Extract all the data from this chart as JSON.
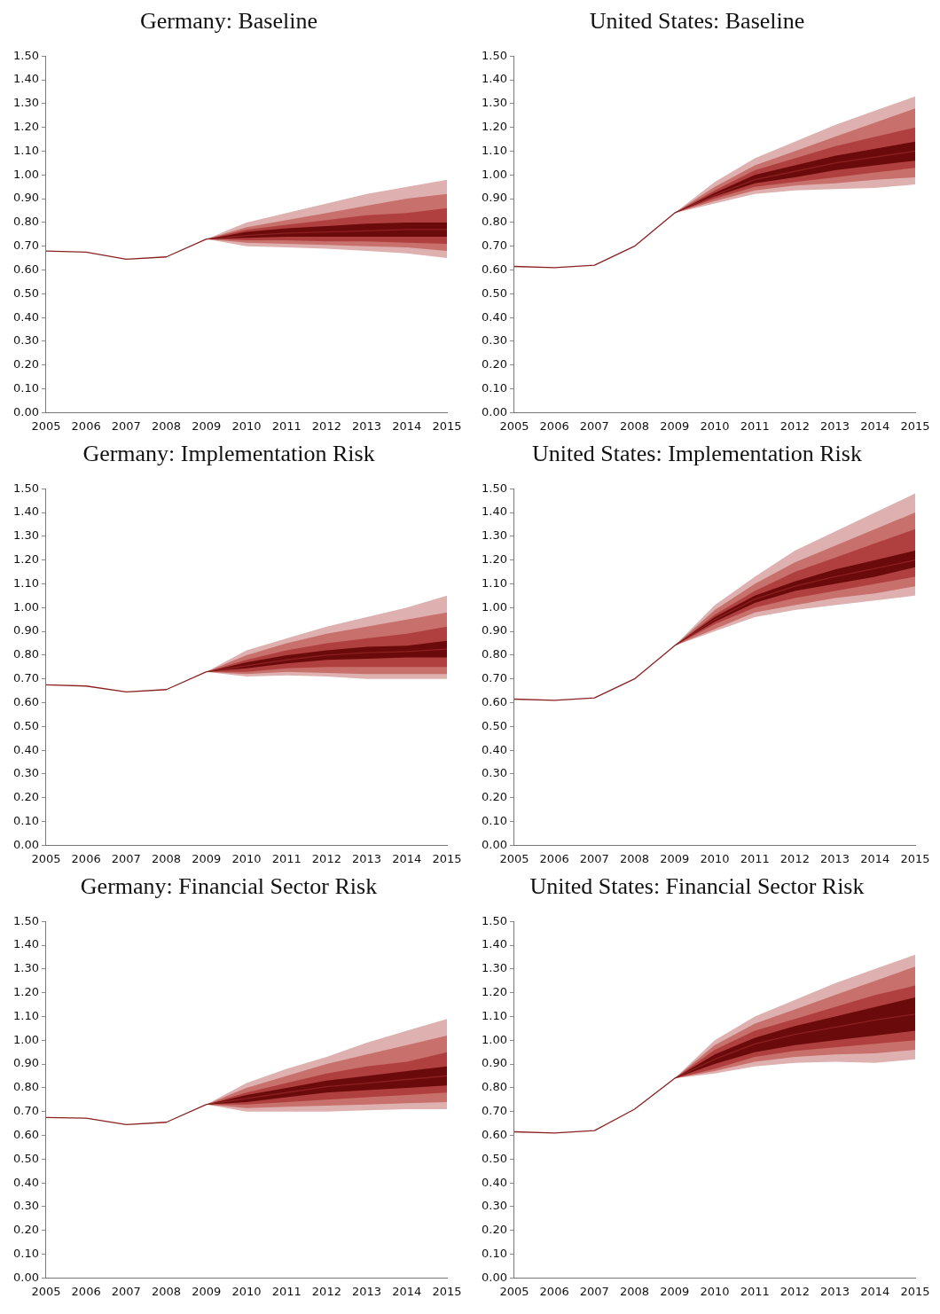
{
  "chart_data": [
    {
      "type": "line",
      "title": "Germany: Baseline",
      "categories": [
        "2005",
        "2006",
        "2007",
        "2008",
        "2009",
        "2010",
        "2011",
        "2012",
        "2013",
        "2014",
        "2015"
      ],
      "ylim": [
        0,
        1.5
      ],
      "yticks": [
        {
          "value": 0,
          "label": "0.00"
        },
        {
          "value": 0.1,
          "label": "0.10"
        },
        {
          "value": 0.2,
          "label": "0.20"
        },
        {
          "value": 0.3,
          "label": "0.30"
        },
        {
          "value": 0.4,
          "label": "0.40"
        },
        {
          "value": 0.5,
          "label": "0.50"
        },
        {
          "value": 0.6,
          "label": "0.60"
        },
        {
          "value": 0.7,
          "label": "0.70"
        },
        {
          "value": 0.8,
          "label": "0.80"
        },
        {
          "value": 0.9,
          "label": "0.90"
        },
        {
          "value": 1,
          "label": "1.00"
        },
        {
          "value": 1.1,
          "label": "1.10"
        },
        {
          "value": 1.2,
          "label": "1.20"
        },
        {
          "value": 1.3,
          "label": "1.30"
        },
        {
          "value": 1.4,
          "label": "1.40"
        },
        {
          "value": 1.5,
          "label": "1.50"
        }
      ],
      "grid": false,
      "legend": false,
      "series": [
        {
          "type": "area",
          "color": "#dfb0b0",
          "values": [
            null,
            null,
            null,
            null,
            null,
            null,
            null,
            null,
            null,
            null,
            null
          ],
          "lower": [
            null,
            null,
            null,
            null,
            0.73,
            0.7,
            0.695,
            0.69,
            0.68,
            0.67,
            0.65
          ],
          "upper": [
            null,
            null,
            null,
            null,
            0.73,
            0.8,
            0.84,
            0.88,
            0.92,
            0.95,
            0.98
          ]
        },
        {
          "type": "area",
          "color": "#c8706b",
          "values": [
            null,
            null,
            null,
            null,
            null,
            null,
            null,
            null,
            null,
            null,
            null
          ],
          "lower": [
            null,
            null,
            null,
            null,
            0.73,
            0.715,
            0.71,
            0.705,
            0.7,
            0.695,
            0.68
          ],
          "upper": [
            null,
            null,
            null,
            null,
            0.73,
            0.78,
            0.81,
            0.84,
            0.87,
            0.9,
            0.92
          ]
        },
        {
          "type": "area",
          "color": "#b04040",
          "values": [
            null,
            null,
            null,
            null,
            null,
            null,
            null,
            null,
            null,
            null,
            null
          ],
          "lower": [
            null,
            null,
            null,
            null,
            0.73,
            0.725,
            0.725,
            0.72,
            0.72,
            0.715,
            0.71
          ],
          "upper": [
            null,
            null,
            null,
            null,
            0.73,
            0.77,
            0.79,
            0.81,
            0.83,
            0.84,
            0.86
          ]
        },
        {
          "type": "area",
          "color": "#6b0a0a",
          "values": [
            null,
            null,
            null,
            null,
            null,
            null,
            null,
            null,
            null,
            null,
            null
          ],
          "lower": [
            null,
            null,
            null,
            null,
            0.73,
            0.735,
            0.74,
            0.74,
            0.74,
            0.74,
            0.74
          ],
          "upper": [
            null,
            null,
            null,
            null,
            0.73,
            0.76,
            0.775,
            0.785,
            0.795,
            0.8,
            0.8
          ]
        },
        {
          "type": "line",
          "color": "#8b2020",
          "values": [
            0.68,
            0.675,
            0.645,
            0.655,
            0.73,
            0.745,
            0.755,
            0.76,
            0.765,
            0.77,
            0.77
          ]
        }
      ]
    },
    {
      "type": "line",
      "title": "United States: Baseline",
      "categories": [
        "2005",
        "2006",
        "2007",
        "2008",
        "2009",
        "2010",
        "2011",
        "2012",
        "2013",
        "2014",
        "2015"
      ],
      "ylim": [
        0,
        1.5
      ],
      "yticks": [
        {
          "value": 0,
          "label": "0.00"
        },
        {
          "value": 0.1,
          "label": "0.10"
        },
        {
          "value": 0.2,
          "label": "0.20"
        },
        {
          "value": 0.3,
          "label": "0.30"
        },
        {
          "value": 0.4,
          "label": "0.40"
        },
        {
          "value": 0.5,
          "label": "0.50"
        },
        {
          "value": 0.6,
          "label": "0.60"
        },
        {
          "value": 0.7,
          "label": "0.70"
        },
        {
          "value": 0.8,
          "label": "0.80"
        },
        {
          "value": 0.9,
          "label": "0.90"
        },
        {
          "value": 1,
          "label": "1.00"
        },
        {
          "value": 1.1,
          "label": "1.10"
        },
        {
          "value": 1.2,
          "label": "1.20"
        },
        {
          "value": 1.3,
          "label": "1.30"
        },
        {
          "value": 1.4,
          "label": "1.40"
        },
        {
          "value": 1.5,
          "label": "1.50"
        }
      ],
      "grid": false,
      "legend": false,
      "series": [
        {
          "type": "area",
          "color": "#dfb0b0",
          "values": [
            null,
            null,
            null,
            null,
            null,
            null,
            null,
            null,
            null,
            null,
            null
          ],
          "lower": [
            null,
            null,
            null,
            null,
            0.84,
            0.88,
            0.92,
            0.935,
            0.94,
            0.945,
            0.96
          ],
          "upper": [
            null,
            null,
            null,
            null,
            0.84,
            0.97,
            1.07,
            1.14,
            1.21,
            1.27,
            1.33
          ]
        },
        {
          "type": "area",
          "color": "#c8706b",
          "values": [
            null,
            null,
            null,
            null,
            null,
            null,
            null,
            null,
            null,
            null,
            null
          ],
          "lower": [
            null,
            null,
            null,
            null,
            0.84,
            0.89,
            0.935,
            0.955,
            0.965,
            0.98,
            0.99
          ],
          "upper": [
            null,
            null,
            null,
            null,
            0.84,
            0.95,
            1.04,
            1.1,
            1.16,
            1.22,
            1.28
          ]
        },
        {
          "type": "area",
          "color": "#b04040",
          "values": [
            null,
            null,
            null,
            null,
            null,
            null,
            null,
            null,
            null,
            null,
            null
          ],
          "lower": [
            null,
            null,
            null,
            null,
            0.84,
            0.9,
            0.95,
            0.97,
            0.99,
            1.01,
            1.03
          ],
          "upper": [
            null,
            null,
            null,
            null,
            0.84,
            0.935,
            1.02,
            1.07,
            1.12,
            1.16,
            1.2
          ]
        },
        {
          "type": "area",
          "color": "#6b0a0a",
          "values": [
            null,
            null,
            null,
            null,
            null,
            null,
            null,
            null,
            null,
            null,
            null
          ],
          "lower": [
            null,
            null,
            null,
            null,
            0.84,
            0.91,
            0.965,
            0.99,
            1.02,
            1.04,
            1.06
          ],
          "upper": [
            null,
            null,
            null,
            null,
            0.84,
            0.925,
            1.0,
            1.04,
            1.08,
            1.11,
            1.14
          ]
        },
        {
          "type": "line",
          "color": "#8b2020",
          "values": [
            0.615,
            0.61,
            0.62,
            0.7,
            0.84,
            0.915,
            0.98,
            1.015,
            1.05,
            1.075,
            1.1
          ]
        }
      ]
    },
    {
      "type": "line",
      "title": "Germany: Implementation Risk",
      "categories": [
        "2005",
        "2006",
        "2007",
        "2008",
        "2009",
        "2010",
        "2011",
        "2012",
        "2013",
        "2014",
        "2015"
      ],
      "ylim": [
        0,
        1.5
      ],
      "yticks": [
        {
          "value": 0,
          "label": "0.00"
        },
        {
          "value": 0.1,
          "label": "0.10"
        },
        {
          "value": 0.2,
          "label": "0.20"
        },
        {
          "value": 0.3,
          "label": "0.30"
        },
        {
          "value": 0.4,
          "label": "0.40"
        },
        {
          "value": 0.5,
          "label": "0.50"
        },
        {
          "value": 0.6,
          "label": "0.60"
        },
        {
          "value": 0.7,
          "label": "0.70"
        },
        {
          "value": 0.8,
          "label": "0.80"
        },
        {
          "value": 0.9,
          "label": "0.90"
        },
        {
          "value": 1,
          "label": "1.00"
        },
        {
          "value": 1.1,
          "label": "1.10"
        },
        {
          "value": 1.2,
          "label": "1.20"
        },
        {
          "value": 1.3,
          "label": "1.30"
        },
        {
          "value": 1.4,
          "label": "1.40"
        },
        {
          "value": 1.5,
          "label": "1.50"
        }
      ],
      "grid": false,
      "legend": false,
      "series": [
        {
          "type": "area",
          "color": "#dfb0b0",
          "values": [
            null,
            null,
            null,
            null,
            null,
            null,
            null,
            null,
            null,
            null,
            null
          ],
          "lower": [
            null,
            null,
            null,
            null,
            0.73,
            0.71,
            0.715,
            0.71,
            0.7,
            0.7,
            0.7
          ],
          "upper": [
            null,
            null,
            null,
            null,
            0.73,
            0.82,
            0.87,
            0.92,
            0.96,
            1.0,
            1.05
          ]
        },
        {
          "type": "area",
          "color": "#c8706b",
          "values": [
            null,
            null,
            null,
            null,
            null,
            null,
            null,
            null,
            null,
            null,
            null
          ],
          "lower": [
            null,
            null,
            null,
            null,
            0.73,
            0.72,
            0.73,
            0.725,
            0.72,
            0.72,
            0.72
          ],
          "upper": [
            null,
            null,
            null,
            null,
            0.73,
            0.8,
            0.85,
            0.89,
            0.92,
            0.95,
            0.98
          ]
        },
        {
          "type": "area",
          "color": "#b04040",
          "values": [
            null,
            null,
            null,
            null,
            null,
            null,
            null,
            null,
            null,
            null,
            null
          ],
          "lower": [
            null,
            null,
            null,
            null,
            0.73,
            0.73,
            0.745,
            0.75,
            0.75,
            0.75,
            0.75
          ],
          "upper": [
            null,
            null,
            null,
            null,
            0.73,
            0.78,
            0.82,
            0.85,
            0.87,
            0.89,
            0.92
          ]
        },
        {
          "type": "area",
          "color": "#6b0a0a",
          "values": [
            null,
            null,
            null,
            null,
            null,
            null,
            null,
            null,
            null,
            null,
            null
          ],
          "lower": [
            null,
            null,
            null,
            null,
            0.73,
            0.745,
            0.765,
            0.78,
            0.785,
            0.79,
            0.79
          ],
          "upper": [
            null,
            null,
            null,
            null,
            0.73,
            0.77,
            0.8,
            0.82,
            0.835,
            0.84,
            0.86
          ]
        },
        {
          "type": "line",
          "color": "#8b2020",
          "values": [
            0.675,
            0.67,
            0.645,
            0.655,
            0.73,
            0.755,
            0.78,
            0.8,
            0.81,
            0.815,
            0.825
          ]
        }
      ]
    },
    {
      "type": "line",
      "title": "United States: Implementation Risk",
      "categories": [
        "2005",
        "2006",
        "2007",
        "2008",
        "2009",
        "2010",
        "2011",
        "2012",
        "2013",
        "2014",
        "2015"
      ],
      "ylim": [
        0,
        1.5
      ],
      "yticks": [
        {
          "value": 0,
          "label": "0.00"
        },
        {
          "value": 0.1,
          "label": "0.10"
        },
        {
          "value": 0.2,
          "label": "0.20"
        },
        {
          "value": 0.3,
          "label": "0.30"
        },
        {
          "value": 0.4,
          "label": "0.40"
        },
        {
          "value": 0.5,
          "label": "0.50"
        },
        {
          "value": 0.6,
          "label": "0.60"
        },
        {
          "value": 0.7,
          "label": "0.70"
        },
        {
          "value": 0.8,
          "label": "0.80"
        },
        {
          "value": 0.9,
          "label": "0.90"
        },
        {
          "value": 1,
          "label": "1.00"
        },
        {
          "value": 1.1,
          "label": "1.10"
        },
        {
          "value": 1.2,
          "label": "1.20"
        },
        {
          "value": 1.3,
          "label": "1.30"
        },
        {
          "value": 1.4,
          "label": "1.40"
        },
        {
          "value": 1.5,
          "label": "1.50"
        }
      ],
      "grid": false,
      "legend": false,
      "series": [
        {
          "type": "area",
          "color": "#dfb0b0",
          "values": [
            null,
            null,
            null,
            null,
            null,
            null,
            null,
            null,
            null,
            null,
            null
          ],
          "lower": [
            null,
            null,
            null,
            null,
            0.84,
            0.9,
            0.96,
            0.99,
            1.01,
            1.03,
            1.05
          ],
          "upper": [
            null,
            null,
            null,
            null,
            0.84,
            1.01,
            1.13,
            1.24,
            1.32,
            1.4,
            1.48
          ]
        },
        {
          "type": "area",
          "color": "#c8706b",
          "values": [
            null,
            null,
            null,
            null,
            null,
            null,
            null,
            null,
            null,
            null,
            null
          ],
          "lower": [
            null,
            null,
            null,
            null,
            0.84,
            0.91,
            0.98,
            1.01,
            1.04,
            1.06,
            1.09
          ],
          "upper": [
            null,
            null,
            null,
            null,
            0.84,
            0.99,
            1.1,
            1.19,
            1.26,
            1.33,
            1.4
          ]
        },
        {
          "type": "area",
          "color": "#b04040",
          "values": [
            null,
            null,
            null,
            null,
            null,
            null,
            null,
            null,
            null,
            null,
            null
          ],
          "lower": [
            null,
            null,
            null,
            null,
            0.84,
            0.93,
            1.0,
            1.04,
            1.07,
            1.1,
            1.13
          ],
          "upper": [
            null,
            null,
            null,
            null,
            0.84,
            0.97,
            1.07,
            1.15,
            1.21,
            1.27,
            1.33
          ]
        },
        {
          "type": "area",
          "color": "#6b0a0a",
          "values": [
            null,
            null,
            null,
            null,
            null,
            null,
            null,
            null,
            null,
            null,
            null
          ],
          "lower": [
            null,
            null,
            null,
            null,
            0.84,
            0.94,
            1.02,
            1.07,
            1.1,
            1.13,
            1.17
          ],
          "upper": [
            null,
            null,
            null,
            null,
            0.84,
            0.96,
            1.05,
            1.11,
            1.16,
            1.2,
            1.24
          ]
        },
        {
          "type": "line",
          "color": "#8b2020",
          "values": [
            0.615,
            0.61,
            0.62,
            0.7,
            0.84,
            0.95,
            1.035,
            1.09,
            1.13,
            1.165,
            1.2
          ]
        }
      ]
    },
    {
      "type": "line",
      "title": "Germany: Financial Sector Risk",
      "categories": [
        "2005",
        "2006",
        "2007",
        "2008",
        "2009",
        "2010",
        "2011",
        "2012",
        "2013",
        "2014",
        "2015"
      ],
      "ylim": [
        0,
        1.5
      ],
      "yticks": [
        {
          "value": 0,
          "label": "0.00"
        },
        {
          "value": 0.1,
          "label": "0.10"
        },
        {
          "value": 0.2,
          "label": "0.20"
        },
        {
          "value": 0.3,
          "label": "0.30"
        },
        {
          "value": 0.4,
          "label": "0.40"
        },
        {
          "value": 0.5,
          "label": "0.50"
        },
        {
          "value": 0.6,
          "label": "0.60"
        },
        {
          "value": 0.7,
          "label": "0.70"
        },
        {
          "value": 0.8,
          "label": "0.80"
        },
        {
          "value": 0.9,
          "label": "0.90"
        },
        {
          "value": 1,
          "label": "1.00"
        },
        {
          "value": 1.1,
          "label": "1.10"
        },
        {
          "value": 1.2,
          "label": "1.20"
        },
        {
          "value": 1.3,
          "label": "1.30"
        },
        {
          "value": 1.4,
          "label": "1.40"
        },
        {
          "value": 1.5,
          "label": "1.50"
        }
      ],
      "grid": false,
      "legend": false,
      "series": [
        {
          "type": "area",
          "color": "#dfb0b0",
          "values": [
            null,
            null,
            null,
            null,
            null,
            null,
            null,
            null,
            null,
            null,
            null
          ],
          "lower": [
            null,
            null,
            null,
            null,
            0.73,
            0.7,
            0.7,
            0.7,
            0.705,
            0.71,
            0.71
          ],
          "upper": [
            null,
            null,
            null,
            null,
            0.73,
            0.82,
            0.88,
            0.93,
            0.99,
            1.04,
            1.09
          ]
        },
        {
          "type": "area",
          "color": "#c8706b",
          "values": [
            null,
            null,
            null,
            null,
            null,
            null,
            null,
            null,
            null,
            null,
            null
          ],
          "lower": [
            null,
            null,
            null,
            null,
            0.73,
            0.715,
            0.72,
            0.725,
            0.73,
            0.735,
            0.74
          ],
          "upper": [
            null,
            null,
            null,
            null,
            0.73,
            0.8,
            0.85,
            0.9,
            0.94,
            0.98,
            1.02
          ]
        },
        {
          "type": "area",
          "color": "#b04040",
          "values": [
            null,
            null,
            null,
            null,
            null,
            null,
            null,
            null,
            null,
            null,
            null
          ],
          "lower": [
            null,
            null,
            null,
            null,
            0.73,
            0.73,
            0.74,
            0.75,
            0.76,
            0.77,
            0.78
          ],
          "upper": [
            null,
            null,
            null,
            null,
            0.73,
            0.78,
            0.82,
            0.86,
            0.89,
            0.91,
            0.95
          ]
        },
        {
          "type": "area",
          "color": "#6b0a0a",
          "values": [
            null,
            null,
            null,
            null,
            null,
            null,
            null,
            null,
            null,
            null,
            null
          ],
          "lower": [
            null,
            null,
            null,
            null,
            0.73,
            0.74,
            0.76,
            0.78,
            0.79,
            0.8,
            0.81
          ],
          "upper": [
            null,
            null,
            null,
            null,
            0.73,
            0.77,
            0.8,
            0.83,
            0.85,
            0.87,
            0.89
          ]
        },
        {
          "type": "line",
          "color": "#8b2020",
          "values": [
            0.675,
            0.672,
            0.645,
            0.655,
            0.73,
            0.755,
            0.78,
            0.805,
            0.82,
            0.835,
            0.85
          ]
        }
      ]
    },
    {
      "type": "line",
      "title": "United States: Financial Sector Risk",
      "categories": [
        "2005",
        "2006",
        "2007",
        "2008",
        "2009",
        "2010",
        "2011",
        "2012",
        "2013",
        "2014",
        "2015"
      ],
      "ylim": [
        0,
        1.5
      ],
      "yticks": [
        {
          "value": 0,
          "label": "0.00"
        },
        {
          "value": 0.1,
          "label": "0.10"
        },
        {
          "value": 0.2,
          "label": "0.20"
        },
        {
          "value": 0.3,
          "label": "0.30"
        },
        {
          "value": 0.4,
          "label": "0.40"
        },
        {
          "value": 0.5,
          "label": "0.50"
        },
        {
          "value": 0.6,
          "label": "0.60"
        },
        {
          "value": 0.7,
          "label": "0.70"
        },
        {
          "value": 0.8,
          "label": "0.80"
        },
        {
          "value": 0.9,
          "label": "0.90"
        },
        {
          "value": 1,
          "label": "1.00"
        },
        {
          "value": 1.1,
          "label": "1.10"
        },
        {
          "value": 1.2,
          "label": "1.20"
        },
        {
          "value": 1.3,
          "label": "1.30"
        },
        {
          "value": 1.4,
          "label": "1.40"
        },
        {
          "value": 1.5,
          "label": "1.50"
        }
      ],
      "grid": false,
      "legend": false,
      "series": [
        {
          "type": "area",
          "color": "#dfb0b0",
          "values": [
            null,
            null,
            null,
            null,
            null,
            null,
            null,
            null,
            null,
            null,
            null
          ],
          "lower": [
            null,
            null,
            null,
            null,
            0.84,
            0.86,
            0.89,
            0.905,
            0.91,
            0.905,
            0.92
          ],
          "upper": [
            null,
            null,
            null,
            null,
            0.84,
            1.0,
            1.1,
            1.17,
            1.24,
            1.3,
            1.36
          ]
        },
        {
          "type": "area",
          "color": "#c8706b",
          "values": [
            null,
            null,
            null,
            null,
            null,
            null,
            null,
            null,
            null,
            null,
            null
          ],
          "lower": [
            null,
            null,
            null,
            null,
            0.84,
            0.87,
            0.91,
            0.93,
            0.94,
            0.945,
            0.96
          ],
          "upper": [
            null,
            null,
            null,
            null,
            0.84,
            0.98,
            1.07,
            1.13,
            1.19,
            1.25,
            1.31
          ]
        },
        {
          "type": "area",
          "color": "#b04040",
          "values": [
            null,
            null,
            null,
            null,
            null,
            null,
            null,
            null,
            null,
            null,
            null
          ],
          "lower": [
            null,
            null,
            null,
            null,
            0.84,
            0.88,
            0.93,
            0.955,
            0.97,
            0.985,
            1.0
          ],
          "upper": [
            null,
            null,
            null,
            null,
            0.84,
            0.96,
            1.04,
            1.09,
            1.14,
            1.19,
            1.23
          ]
        },
        {
          "type": "area",
          "color": "#6b0a0a",
          "values": [
            null,
            null,
            null,
            null,
            null,
            null,
            null,
            null,
            null,
            null,
            null
          ],
          "lower": [
            null,
            null,
            null,
            null,
            0.84,
            0.9,
            0.95,
            0.98,
            1.0,
            1.02,
            1.04
          ],
          "upper": [
            null,
            null,
            null,
            null,
            0.84,
            0.94,
            1.01,
            1.06,
            1.1,
            1.14,
            1.18
          ]
        },
        {
          "type": "line",
          "color": "#8b2020",
          "values": [
            0.615,
            0.61,
            0.62,
            0.71,
            0.84,
            0.92,
            0.985,
            1.025,
            1.055,
            1.085,
            1.11
          ]
        }
      ]
    }
  ]
}
